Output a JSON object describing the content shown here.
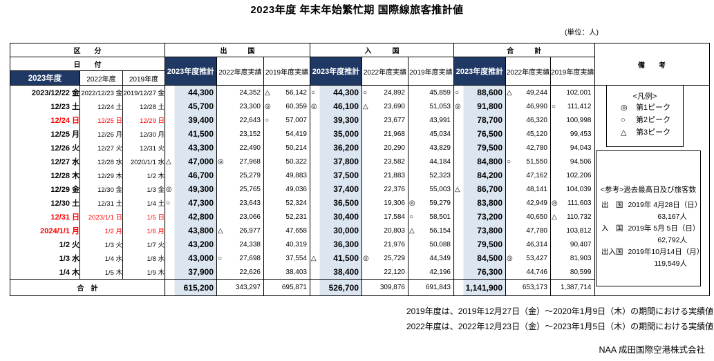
{
  "title": "2023年度 年末年始繁忙期 国際線旅客推計値",
  "unit_note": "(単位：人)",
  "colors": {
    "header_navy": "#1f3864",
    "estimate_column_fill": "#dce6f1",
    "holiday_red": "#ff0000"
  },
  "header": {
    "kubun": "区　　分",
    "hizuke": "日　　付",
    "groups": [
      "出　　　国",
      "入　　　国",
      "合　　　計"
    ],
    "sub": [
      "2023年度推計",
      "2022年度実績",
      "2019年度実績"
    ],
    "date_cols": [
      "2023年度",
      "2022年度",
      "2019年度"
    ],
    "biko": "備　　考"
  },
  "rows": [
    {
      "red": false,
      "dates": [
        "2023/12/22 金",
        "2022/12/23 金",
        "2019/12/27 金"
      ],
      "values": [
        {
          "m": "",
          "v": "44,300"
        },
        {
          "m": "",
          "v": "24,352"
        },
        {
          "m": "△",
          "v": "56,142"
        },
        {
          "m": "○",
          "v": "44,300"
        },
        {
          "m": "○",
          "v": "24,892"
        },
        {
          "m": "",
          "v": "45,859"
        },
        {
          "m": "○",
          "v": "88,600"
        },
        {
          "m": "△",
          "v": "49,244"
        },
        {
          "m": "",
          "v": "102,001"
        }
      ]
    },
    {
      "red": false,
      "dates": [
        "12/23 土",
        "12/24 土",
        "12/28 土"
      ],
      "values": [
        {
          "m": "",
          "v": "45,700"
        },
        {
          "m": "",
          "v": "23,300"
        },
        {
          "m": "◎",
          "v": "60,359"
        },
        {
          "m": "◎",
          "v": "46,100"
        },
        {
          "m": "△",
          "v": "23,690"
        },
        {
          "m": "",
          "v": "51,053"
        },
        {
          "m": "◎",
          "v": "91,800"
        },
        {
          "m": "",
          "v": "46,990"
        },
        {
          "m": "○",
          "v": "111,412"
        }
      ]
    },
    {
      "red": true,
      "dates": [
        "12/24 日",
        "12/25 日",
        "12/29 日"
      ],
      "values": [
        {
          "m": "",
          "v": "39,400"
        },
        {
          "m": "",
          "v": "22,643"
        },
        {
          "m": "○",
          "v": "57,007"
        },
        {
          "m": "",
          "v": "39,300"
        },
        {
          "m": "",
          "v": "23,677"
        },
        {
          "m": "",
          "v": "43,991"
        },
        {
          "m": "",
          "v": "78,700"
        },
        {
          "m": "",
          "v": "46,320"
        },
        {
          "m": "",
          "v": "100,998"
        }
      ]
    },
    {
      "red": false,
      "dates": [
        "12/25 月",
        "12/26 月",
        "12/30 月"
      ],
      "values": [
        {
          "m": "",
          "v": "41,500"
        },
        {
          "m": "",
          "v": "23,152"
        },
        {
          "m": "",
          "v": "54,419"
        },
        {
          "m": "",
          "v": "35,000"
        },
        {
          "m": "",
          "v": "21,968"
        },
        {
          "m": "",
          "v": "45,034"
        },
        {
          "m": "",
          "v": "76,500"
        },
        {
          "m": "",
          "v": "45,120"
        },
        {
          "m": "",
          "v": "99,453"
        }
      ]
    },
    {
      "red": false,
      "dates": [
        "12/26 火",
        "12/27 火",
        "12/31 火"
      ],
      "values": [
        {
          "m": "",
          "v": "43,300"
        },
        {
          "m": "",
          "v": "22,490"
        },
        {
          "m": "",
          "v": "50,214"
        },
        {
          "m": "",
          "v": "36,200"
        },
        {
          "m": "",
          "v": "20,290"
        },
        {
          "m": "",
          "v": "43,829"
        },
        {
          "m": "",
          "v": "79,500"
        },
        {
          "m": "",
          "v": "42,780"
        },
        {
          "m": "",
          "v": "94,043"
        }
      ]
    },
    {
      "red": false,
      "dates": [
        "12/27 水",
        "12/28 水",
        "2020/1/1 水"
      ],
      "values": [
        {
          "m": "△",
          "v": "47,000"
        },
        {
          "m": "◎",
          "v": "27,968"
        },
        {
          "m": "",
          "v": "50,322"
        },
        {
          "m": "",
          "v": "37,800"
        },
        {
          "m": "",
          "v": "23,582"
        },
        {
          "m": "",
          "v": "44,184"
        },
        {
          "m": "",
          "v": "84,800"
        },
        {
          "m": "○",
          "v": "51,550"
        },
        {
          "m": "",
          "v": "94,506"
        }
      ]
    },
    {
      "red": false,
      "dates": [
        "12/28 木",
        "12/29 木",
        "1/2 木"
      ],
      "values": [
        {
          "m": "",
          "v": "46,700"
        },
        {
          "m": "",
          "v": "25,279"
        },
        {
          "m": "",
          "v": "49,883"
        },
        {
          "m": "",
          "v": "37,500"
        },
        {
          "m": "",
          "v": "21,883"
        },
        {
          "m": "",
          "v": "52,323"
        },
        {
          "m": "",
          "v": "84,200"
        },
        {
          "m": "",
          "v": "47,162"
        },
        {
          "m": "",
          "v": "102,206"
        }
      ]
    },
    {
      "red": false,
      "dates": [
        "12/29 金",
        "12/30 金",
        "1/3 金"
      ],
      "values": [
        {
          "m": "◎",
          "v": "49,300"
        },
        {
          "m": "",
          "v": "25,765"
        },
        {
          "m": "",
          "v": "49,036"
        },
        {
          "m": "",
          "v": "37,400"
        },
        {
          "m": "",
          "v": "22,376"
        },
        {
          "m": "",
          "v": "55,003"
        },
        {
          "m": "△",
          "v": "86,700"
        },
        {
          "m": "",
          "v": "48,141"
        },
        {
          "m": "",
          "v": "104,039"
        }
      ]
    },
    {
      "red": false,
      "dates": [
        "12/30 土",
        "12/31 土",
        "1/4 土"
      ],
      "values": [
        {
          "m": "○",
          "v": "47,300"
        },
        {
          "m": "",
          "v": "23,643"
        },
        {
          "m": "",
          "v": "52,324"
        },
        {
          "m": "",
          "v": "36,500"
        },
        {
          "m": "",
          "v": "19,306"
        },
        {
          "m": "◎",
          "v": "59,279"
        },
        {
          "m": "",
          "v": "83,800"
        },
        {
          "m": "",
          "v": "42,949"
        },
        {
          "m": "◎",
          "v": "111,603"
        }
      ]
    },
    {
      "red": true,
      "dates": [
        "12/31 日",
        "2023/1/1 日",
        "1/5 日"
      ],
      "values": [
        {
          "m": "",
          "v": "42,800"
        },
        {
          "m": "",
          "v": "23,066"
        },
        {
          "m": "",
          "v": "52,231"
        },
        {
          "m": "",
          "v": "30,400"
        },
        {
          "m": "",
          "v": "17,584"
        },
        {
          "m": "○",
          "v": "58,501"
        },
        {
          "m": "",
          "v": "73,200"
        },
        {
          "m": "",
          "v": "40,650"
        },
        {
          "m": "△",
          "v": "110,732"
        }
      ]
    },
    {
      "red": true,
      "dates": [
        "2024/1/1 月",
        "1/2 月",
        "1/6 月"
      ],
      "values": [
        {
          "m": "",
          "v": "43,800"
        },
        {
          "m": "△",
          "v": "26,977"
        },
        {
          "m": "",
          "v": "47,658"
        },
        {
          "m": "",
          "v": "30,000"
        },
        {
          "m": "",
          "v": "20,803"
        },
        {
          "m": "△",
          "v": "56,154"
        },
        {
          "m": "",
          "v": "73,800"
        },
        {
          "m": "",
          "v": "47,780"
        },
        {
          "m": "",
          "v": "103,812"
        }
      ]
    },
    {
      "red": false,
      "dates": [
        "1/2 火",
        "1/3 火",
        "1/7 火"
      ],
      "values": [
        {
          "m": "",
          "v": "43,200"
        },
        {
          "m": "",
          "v": "24,338"
        },
        {
          "m": "",
          "v": "40,319"
        },
        {
          "m": "",
          "v": "36,300"
        },
        {
          "m": "",
          "v": "21,976"
        },
        {
          "m": "",
          "v": "50,088"
        },
        {
          "m": "",
          "v": "79,500"
        },
        {
          "m": "",
          "v": "46,314"
        },
        {
          "m": "",
          "v": "90,407"
        }
      ]
    },
    {
      "red": false,
      "dates": [
        "1/3 水",
        "1/4 水",
        "1/8 水"
      ],
      "values": [
        {
          "m": "",
          "v": "43,000"
        },
        {
          "m": "○",
          "v": "27,698"
        },
        {
          "m": "",
          "v": "37,554"
        },
        {
          "m": "△",
          "v": "41,500"
        },
        {
          "m": "◎",
          "v": "25,729"
        },
        {
          "m": "",
          "v": "44,349"
        },
        {
          "m": "",
          "v": "84,500"
        },
        {
          "m": "◎",
          "v": "53,427"
        },
        {
          "m": "",
          "v": "81,903"
        }
      ]
    },
    {
      "red": false,
      "dates": [
        "1/4 木",
        "1/5 木",
        "1/9 木"
      ],
      "values": [
        {
          "m": "",
          "v": "37,900"
        },
        {
          "m": "",
          "v": "22,626"
        },
        {
          "m": "",
          "v": "38,403"
        },
        {
          "m": "",
          "v": "38,400"
        },
        {
          "m": "",
          "v": "22,120"
        },
        {
          "m": "",
          "v": "42,196"
        },
        {
          "m": "",
          "v": "76,300"
        },
        {
          "m": "",
          "v": "44,746"
        },
        {
          "m": "",
          "v": "80,599"
        }
      ]
    }
  ],
  "total": {
    "label": "合　計",
    "values": [
      "615,200",
      "343,297",
      "695,871",
      "526,700",
      "309,876",
      "691,843",
      "1,141,900",
      "653,173",
      "1,387,714"
    ]
  },
  "legend": {
    "title": "<凡例>",
    "items": [
      {
        "mark": "◎",
        "label": "第1ピーク"
      },
      {
        "mark": "○",
        "label": "第2ピーク"
      },
      {
        "mark": "△",
        "label": "第3ピーク"
      }
    ]
  },
  "reference": {
    "title": "<参考>過去最高日及び旅客数",
    "items": [
      {
        "label": "出　国",
        "date": "2019年 4月28日（日）",
        "count": "63,167人"
      },
      {
        "label": "入　国",
        "date": "2019年 5月 5日（日）",
        "count": "62,792人"
      },
      {
        "label": "出入国",
        "date": "2019年10月14日（月）",
        "count": "119,549人"
      }
    ]
  },
  "notes": [
    "2019年度は、2019年12月27日（金）～2020年1月9日（木）の期間における実績値",
    "2022年度は、2022年12月23日（金）～2023年1月5日（木）の期間における実績値"
  ],
  "company": "NAA 成田国際空港株式会社"
}
